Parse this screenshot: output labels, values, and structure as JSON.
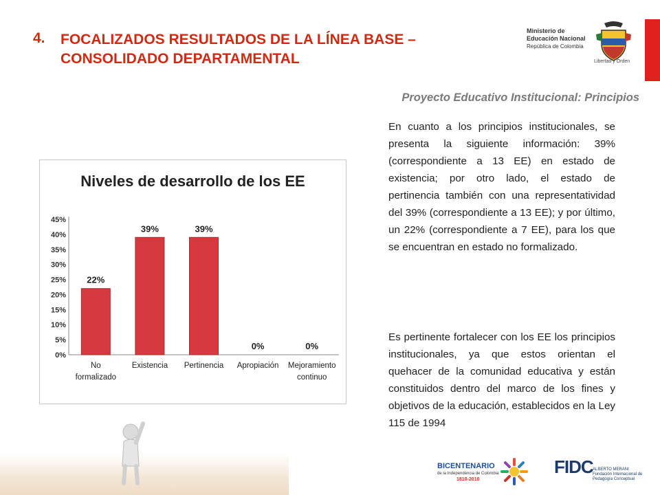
{
  "header": {
    "number": "4.",
    "title_line1": "FOCALIZADOS RESULTADOS DE LA LÍNEA BASE –",
    "title_line2": "CONSOLIDADO DEPARTAMENTAL",
    "subtitle": "Proyecto Educativo Institucional: Principios",
    "accent_color": "#d22a12"
  },
  "ministry_logo": {
    "line1": "Ministerio de",
    "line2": "Educación Nacional",
    "line3": "República de Colombia",
    "motto": "Libertad y Orden"
  },
  "chart_data": {
    "type": "bar",
    "title": "Niveles de desarrollo de los EE",
    "categories": [
      "No formalizado",
      "Existencia",
      "Pertinencia",
      "Apropiación",
      "Mejoramiento continuo"
    ],
    "category_lines": [
      [
        "No",
        "formalizado"
      ],
      [
        "Existencia"
      ],
      [
        "Pertinencia"
      ],
      [
        "Apropiación"
      ],
      [
        "Mejoramiento",
        "continuo"
      ]
    ],
    "values": [
      22,
      39,
      39,
      0,
      0
    ],
    "data_labels": [
      "22%",
      "39%",
      "39%",
      "0%",
      "0%"
    ],
    "yticks": [
      "0%",
      "5%",
      "10%",
      "15%",
      "20%",
      "25%",
      "30%",
      "35%",
      "40%",
      "45%"
    ],
    "ylim": [
      0,
      45
    ],
    "grid": false,
    "bar_color": "#d63a3f"
  },
  "body": {
    "paragraph1": "En cuanto a los principios institucionales, se presenta la siguiente información: 39% (correspondiente a 13 EE) en estado de existencia; por otro lado, el estado de pertinencia también con una representatividad del 39% (correspondiente a 13 EE); y por último, un 22% (correspondiente a 7 EE), para los que se encuentran en estado no formalizado.",
    "paragraph2": "Es pertinente fortalecer con los EE los principios institucionales, ya que estos orientan el quehacer de la comunidad educativa y están constituidos dentro del marco de los fines y objetivos de la educación, establecidos en la Ley 115 de 1994"
  },
  "footer": {
    "bicentenario": "BICENTENARIO",
    "bicentenario_sub": "de la Independencia de Colombia",
    "bicentenario_years": "1810-2010",
    "fidc": "FIDC",
    "fidc_sub1": "ALBERTO MERANI",
    "fidc_sub2": "Fundación Internacional de Pedagogía Conceptual"
  }
}
